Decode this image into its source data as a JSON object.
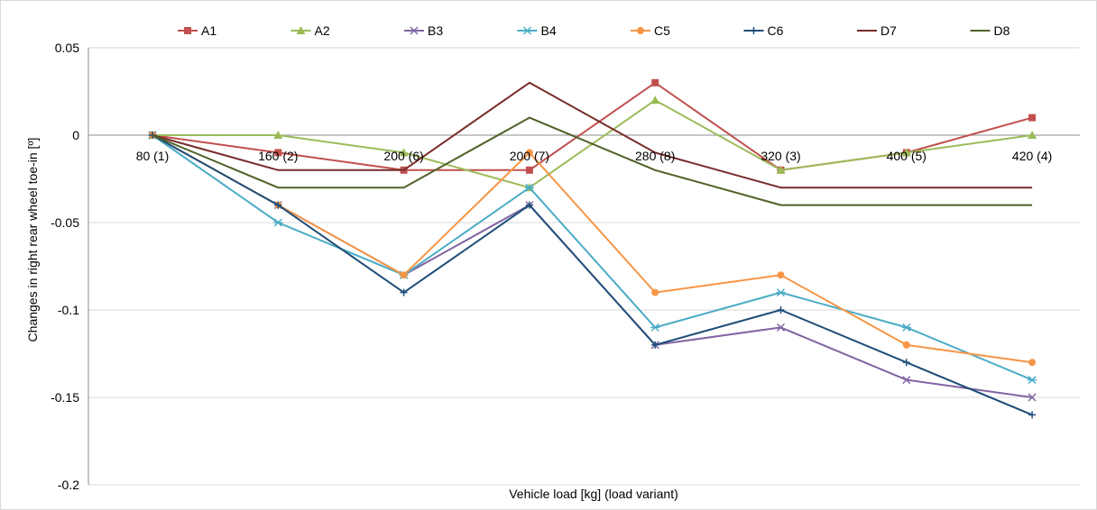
{
  "chart_data": {
    "type": "line",
    "xlabel": "Vehicle load [kg] (load variant)",
    "ylabel": "Changes in right rear wheel toe-in [º]",
    "categories": [
      "80 (1)",
      "160 (2)",
      "200 (6)",
      "200 (7)",
      "280 (8)",
      "320 (3)",
      "400 (5)",
      "420 (4)"
    ],
    "ylim": [
      -0.2,
      0.05
    ],
    "yticks": [
      0.05,
      0,
      -0.05,
      -0.1,
      -0.15,
      -0.2
    ],
    "ytick_labels": [
      "0.05",
      "0",
      "-0.05",
      "-0.1",
      "-0.15",
      "-0.2"
    ],
    "grid": true,
    "legend_position": "top",
    "series": [
      {
        "name": "A1",
        "color": "#C0504D",
        "marker": "square",
        "values": [
          0,
          -0.01,
          -0.02,
          -0.02,
          0.03,
          -0.02,
          -0.01,
          0.01
        ]
      },
      {
        "name": "A2",
        "color": "#9BBB59",
        "marker": "triangle",
        "values": [
          0,
          0,
          -0.01,
          -0.03,
          0.02,
          -0.02,
          -0.01,
          0
        ]
      },
      {
        "name": "B3",
        "color": "#8064A2",
        "marker": "x",
        "values": [
          0,
          -0.04,
          -0.08,
          -0.04,
          -0.12,
          -0.11,
          -0.14,
          -0.15
        ]
      },
      {
        "name": "B4",
        "color": "#4BACC6",
        "marker": "star",
        "values": [
          0,
          -0.05,
          -0.08,
          -0.03,
          -0.11,
          -0.09,
          -0.11,
          -0.14
        ]
      },
      {
        "name": "C5",
        "color": "#F79646",
        "marker": "circle",
        "values": [
          0,
          -0.04,
          -0.08,
          -0.01,
          -0.09,
          -0.08,
          -0.12,
          -0.13
        ]
      },
      {
        "name": "C6",
        "color": "#1F4E79",
        "marker": "plus",
        "values": [
          0,
          -0.04,
          -0.09,
          -0.04,
          -0.12,
          -0.1,
          -0.13,
          -0.16
        ]
      },
      {
        "name": "D7",
        "color": "#772C2A",
        "marker": "none",
        "values": [
          0,
          -0.02,
          -0.02,
          0.03,
          -0.01,
          -0.03,
          -0.03,
          -0.03
        ]
      },
      {
        "name": "D8",
        "color": "#4F6228",
        "marker": "none",
        "values": [
          0,
          -0.03,
          -0.03,
          0.01,
          -0.02,
          -0.04,
          -0.04,
          -0.04
        ]
      }
    ]
  }
}
